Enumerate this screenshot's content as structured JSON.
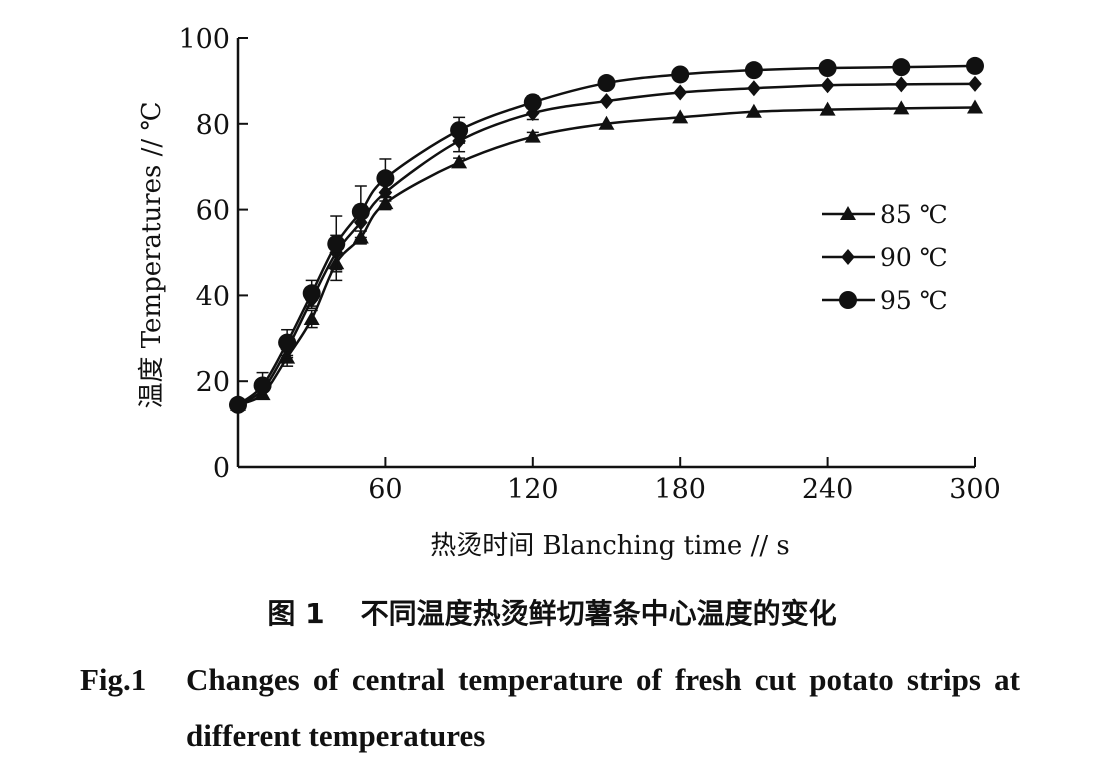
{
  "chart_data": {
    "type": "line",
    "xlabel": "热烫时间 Blanching time // s",
    "ylabel": "温度 Temperatures // ℃",
    "xlim": [
      0,
      300
    ],
    "ylim": [
      0,
      100
    ],
    "xticks": [
      0,
      60,
      120,
      180,
      240,
      300
    ],
    "yticks": [
      0,
      20,
      40,
      60,
      80,
      100
    ],
    "x_tick_labels": [
      "60",
      "120",
      "180",
      "240",
      "300"
    ],
    "y_tick_labels": [
      "0",
      "20",
      "40",
      "60",
      "80",
      "100"
    ],
    "grid": false,
    "legend_position": "right-middle",
    "x": [
      0,
      10,
      20,
      30,
      40,
      50,
      60,
      90,
      120,
      150,
      180,
      210,
      240,
      270,
      300
    ],
    "series": [
      {
        "name": "85 ℃",
        "marker": "triangle",
        "values": [
          14.5,
          17,
          25.5,
          34.5,
          47.5,
          53.5,
          61.5,
          71,
          77,
          80,
          81.5,
          82.8,
          83.3,
          83.6,
          83.8
        ],
        "errors": [
          0,
          0,
          2,
          2,
          4,
          1.5,
          1.5,
          1,
          1,
          0,
          0,
          0,
          0,
          0,
          0
        ]
      },
      {
        "name": "90 ℃",
        "marker": "diamond",
        "values": [
          14.5,
          18,
          27.5,
          39,
          50,
          57,
          64,
          76,
          82.5,
          85.3,
          87.3,
          88.3,
          89,
          89.2,
          89.3
        ],
        "errors": [
          0,
          2,
          2,
          2,
          4,
          4,
          2,
          2.5,
          1.5,
          0,
          0,
          0,
          0,
          0,
          0
        ]
      },
      {
        "name": "95 ℃",
        "marker": "circle",
        "values": [
          14.5,
          19,
          29,
          40.5,
          52,
          59.5,
          67.3,
          78.5,
          85,
          89.5,
          91.5,
          92.5,
          93,
          93.2,
          93.5
        ],
        "errors": [
          0,
          3,
          3,
          3,
          6.5,
          6,
          4.5,
          3,
          1.5,
          0,
          0,
          0,
          0,
          0,
          0
        ]
      }
    ]
  },
  "caption": {
    "cn_number": "图 1",
    "cn_title": "不同温度热烫鲜切薯条中心温度的变化",
    "en_number": "Fig.1",
    "en_title": "Changes of central temperature of fresh cut potato strips at different temperatures"
  }
}
